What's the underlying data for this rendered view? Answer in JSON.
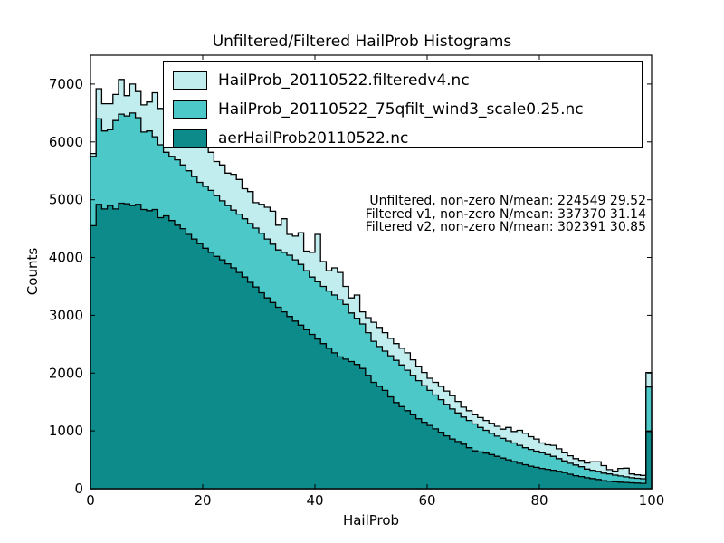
{
  "title": "Unfiltered/Filtered HailProb Histograms",
  "axes": {
    "xlabel": "HailProb",
    "ylabel": "Counts",
    "x_ticks": [
      0,
      20,
      40,
      60,
      80,
      100
    ],
    "y_ticks": [
      0,
      1000,
      2000,
      3000,
      4000,
      5000,
      6000,
      7000
    ],
    "xlim": [
      0,
      100
    ],
    "ylim": [
      0,
      7500
    ]
  },
  "chart_data": {
    "type": "histogram",
    "title": "Unfiltered/Filtered HailProb Histograms",
    "xlabel": "HailProb",
    "ylabel": "Counts",
    "xlim": [
      0,
      100
    ],
    "ylim": [
      0,
      7500
    ],
    "bin_start": 0,
    "bin_width": 1,
    "grid": false,
    "legend_position": "upper left",
    "annotations": [
      "Unfiltered, non-zero N/mean: 224549 29.52",
      "Filtered v1, non-zero N/mean: 337370 31.14",
      "Filtered v2, non-zero N/mean: 302391 30.85"
    ],
    "series": [
      {
        "name": "HailProb_20110522.filteredv4.nc",
        "fill_color": "#c2edef",
        "edge_color": "#000000",
        "counts": [
          5800,
          6920,
          6660,
          6660,
          6820,
          7080,
          6800,
          7000,
          6870,
          6640,
          6690,
          6850,
          6580,
          6520,
          6460,
          6400,
          6310,
          6220,
          6140,
          6050,
          5960,
          5820,
          5660,
          5600,
          5460,
          5440,
          5350,
          5190,
          5140,
          4950,
          4920,
          4870,
          4800,
          4560,
          4670,
          4400,
          4370,
          4430,
          4110,
          4090,
          4400,
          3930,
          3770,
          3820,
          3740,
          3500,
          3300,
          3350,
          3060,
          2960,
          2880,
          2790,
          2700,
          2600,
          2510,
          2430,
          2350,
          2230,
          2120,
          2010,
          1910,
          1840,
          1770,
          1690,
          1610,
          1510,
          1410,
          1350,
          1280,
          1230,
          1180,
          1130,
          1080,
          1030,
          1060,
          990,
          1010,
          960,
          900,
          860,
          790,
          760,
          750,
          690,
          620,
          570,
          520,
          490,
          445,
          465,
          465,
          400,
          330,
          305,
          350,
          355,
          255,
          240,
          230,
          2010
        ]
      },
      {
        "name": "HailProb_20110522_75qfilt_wind3_scale0.25.nc",
        "fill_color": "#4cc8c8",
        "edge_color": "#000000",
        "counts": [
          5750,
          6400,
          6190,
          6210,
          6370,
          6480,
          6450,
          6500,
          6420,
          6170,
          6190,
          6090,
          5950,
          5820,
          5750,
          5690,
          5600,
          5500,
          5400,
          5300,
          5230,
          5160,
          5070,
          4980,
          4900,
          4820,
          4750,
          4670,
          4590,
          4510,
          4420,
          4320,
          4230,
          4130,
          4090,
          4040,
          3960,
          3880,
          3770,
          3660,
          3580,
          3500,
          3420,
          3350,
          3270,
          3190,
          3040,
          2950,
          2850,
          2700,
          2550,
          2460,
          2380,
          2300,
          2220,
          2140,
          2050,
          1960,
          1870,
          1780,
          1700,
          1620,
          1540,
          1460,
          1380,
          1310,
          1240,
          1180,
          1120,
          1060,
          1010,
          960,
          910,
          870,
          830,
          790,
          750,
          710,
          680,
          650,
          620,
          590,
          560,
          520,
          480,
          440,
          410,
          380,
          340,
          320,
          300,
          270,
          255,
          235,
          220,
          205,
          190,
          180,
          172,
          1760
        ]
      },
      {
        "name": "aerHailProb20110522.nc",
        "fill_color": "#0d8a8a",
        "edge_color": "#000000",
        "counts": [
          4550,
          4920,
          4840,
          4900,
          4840,
          4940,
          4930,
          4900,
          4920,
          4830,
          4810,
          4830,
          4690,
          4720,
          4640,
          4560,
          4500,
          4400,
          4320,
          4240,
          4160,
          4090,
          4020,
          3960,
          3890,
          3820,
          3740,
          3660,
          3570,
          3490,
          3390,
          3300,
          3220,
          3140,
          3060,
          2980,
          2900,
          2830,
          2750,
          2670,
          2590,
          2510,
          2430,
          2350,
          2280,
          2240,
          2200,
          2150,
          2080,
          1960,
          1840,
          1770,
          1700,
          1590,
          1490,
          1420,
          1350,
          1280,
          1210,
          1150,
          1095,
          1035,
          975,
          915,
          860,
          815,
          770,
          710,
          655,
          635,
          615,
          590,
          560,
          530,
          500,
          470,
          440,
          415,
          390,
          370,
          350,
          335,
          320,
          300,
          280,
          250,
          225,
          210,
          190,
          175,
          160,
          140,
          130,
          120,
          112,
          108,
          102,
          97,
          93,
          990
        ]
      }
    ]
  }
}
